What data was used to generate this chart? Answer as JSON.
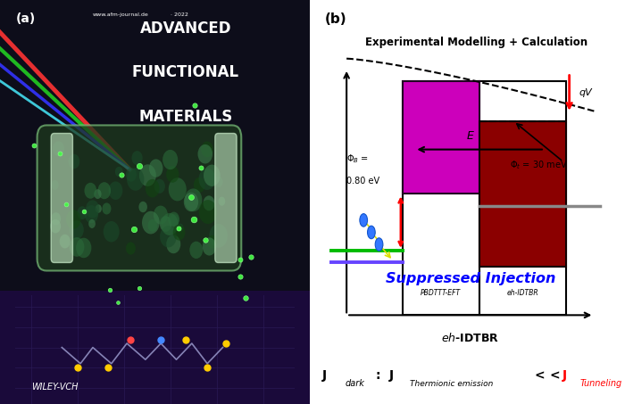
{
  "panel_b": {
    "title": "Experimental Modelling + Calculation",
    "xlabel": "eh-IDTBR",
    "phi_b_line1": "$\\Phi_B$ =",
    "phi_b_line2": "0.80 eV",
    "phi_t_label": "$\\Phi_t$ = 30 meV",
    "E_label": "E",
    "qV_label": "qV",
    "suppressed_label": "Suppressed Injection",
    "pbdttt_label": "PBDTTT-EFT",
    "eh_idtbr_box_label": "eh-IDTBR",
    "xlabel_italic": "eh",
    "xlabel_normal": "-IDTBR",
    "bg_color": "#ffffff",
    "magenta_color": "#cc00bb",
    "dark_red_color": "#8b0000",
    "green_color": "#00bb00",
    "purple_color": "#6644ff",
    "gray_color": "#888888",
    "blue_text_color": "#0000ff",
    "red_color": "#ff0000",
    "black": "#000000"
  }
}
